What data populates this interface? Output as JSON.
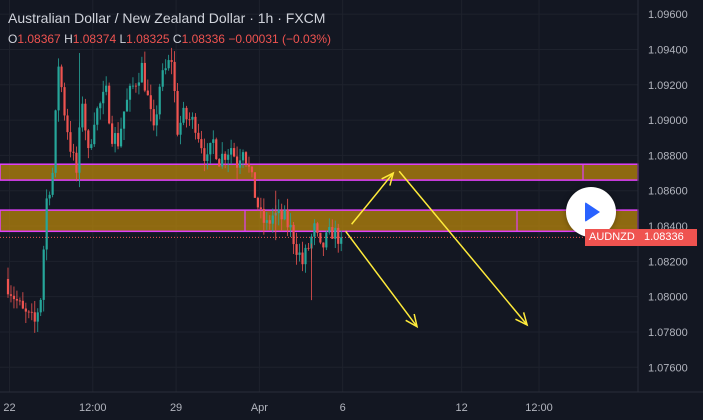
{
  "header": {
    "title": "Australian Dollar / New Zealand Dollar · 1h · FXCM",
    "ohlc": {
      "open_label": "O",
      "open": "1.08367",
      "high_label": "H",
      "high": "1.08374",
      "low_label": "L",
      "low": "1.08325",
      "close_label": "C",
      "close": "1.08336",
      "change": "−0.00031 (−0.03%)"
    }
  },
  "price_tag": {
    "symbol": "AUDNZD",
    "value": "1.08336"
  },
  "colors": {
    "up": "#26a69a",
    "down": "#ef5350",
    "zone_fill": "#b8860b",
    "zone_border": "#e040fb",
    "arrow": "#ffeb3b",
    "play": "#2962ff"
  },
  "icons": {
    "play_button": "play-icon"
  },
  "chart_data": {
    "type": "candlestick",
    "symbol": "AUDNZD",
    "timeframe": "1h",
    "y_axis": {
      "range": [
        1.0746,
        1.0968
      ],
      "ticks": [
        "1.09600",
        "1.09400",
        "1.09200",
        "1.09000",
        "1.08800",
        "1.08600",
        "1.08400",
        "1.08200",
        "1.08000",
        "1.07800",
        "1.07600"
      ]
    },
    "x_axis": {
      "ticks": [
        {
          "label": "22",
          "pos": 0.5
        },
        {
          "label": "12:00",
          "pos": 14.5
        },
        {
          "label": "29",
          "pos": 28.5
        },
        {
          "label": "Apr",
          "pos": 42.5
        },
        {
          "label": "6",
          "pos": 56.5
        },
        {
          "label": "12",
          "pos": 76.5
        },
        {
          "label": "12:00",
          "pos": 89.5
        }
      ],
      "slots": 92
    },
    "zones": [
      {
        "name": "upper-resistance-zone",
        "from": 1.0866,
        "to": 1.0875
      },
      {
        "name": "lower-support-zone",
        "from": 1.0837,
        "to": 1.0849
      }
    ],
    "last_price": 1.08336,
    "arrows": [
      {
        "name": "up-arrow",
        "from": [
          58,
          1.0841
        ],
        "to": [
          65,
          1.087
        ]
      },
      {
        "name": "down-arrow-short",
        "from": [
          57,
          1.0837
        ],
        "to": [
          69,
          1.0783
        ]
      },
      {
        "name": "down-arrow-long",
        "from": [
          66,
          1.0871
        ],
        "to": [
          87.5,
          1.0784
        ]
      }
    ],
    "anchors": [
      [
        0,
        1.081
      ],
      [
        3,
        1.0791
      ],
      [
        5,
        1.0785
      ],
      [
        6,
        1.08
      ],
      [
        7,
        1.0855
      ],
      [
        8,
        1.087
      ],
      [
        9,
        1.0932
      ],
      [
        10,
        1.0905
      ],
      [
        11,
        1.0885
      ],
      [
        12,
        1.087
      ],
      [
        13,
        1.0912
      ],
      [
        14,
        1.088
      ],
      [
        15,
        1.0902
      ],
      [
        17,
        1.0915
      ],
      [
        18,
        1.0892
      ],
      [
        19,
        1.0888
      ],
      [
        20,
        1.0905
      ],
      [
        21,
        1.0915
      ],
      [
        23,
        1.093
      ],
      [
        24,
        1.0912
      ],
      [
        25,
        1.0892
      ],
      [
        26,
        1.092
      ],
      [
        27,
        1.0928
      ],
      [
        28,
        1.0935
      ],
      [
        29,
        1.0895
      ],
      [
        30,
        1.0902
      ],
      [
        32,
        1.0898
      ],
      [
        34,
        1.0876
      ],
      [
        35,
        1.0888
      ],
      [
        36,
        1.0878
      ],
      [
        38,
        1.0885
      ],
      [
        39,
        1.0876
      ],
      [
        40,
        1.0886
      ],
      [
        41,
        1.0872
      ],
      [
        42,
        1.0858
      ],
      [
        43,
        1.0845
      ],
      [
        44,
        1.084
      ],
      [
        45,
        1.0846
      ],
      [
        47,
        1.0844
      ],
      [
        48,
        1.0838
      ],
      [
        49,
        1.0828
      ],
      [
        50,
        1.0819
      ],
      [
        51,
        1.0828
      ],
      [
        52,
        1.0838
      ],
      [
        53,
        1.0826
      ],
      [
        54,
        1.0832
      ],
      [
        55,
        1.0837
      ],
      [
        56,
        1.0834
      ]
    ]
  }
}
